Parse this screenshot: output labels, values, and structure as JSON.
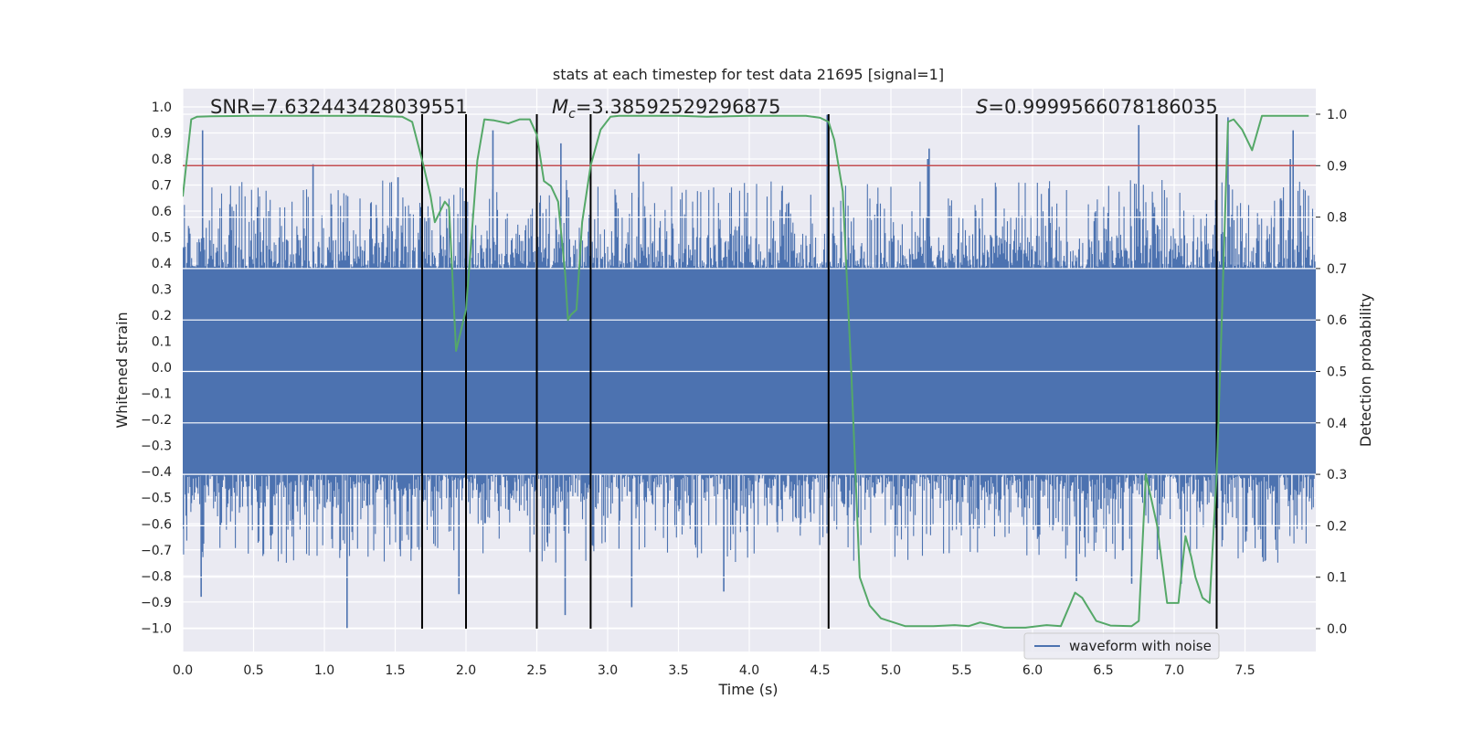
{
  "chart_data": {
    "type": "line",
    "title": "stats at each timestep for test data 21695 [signal=1]",
    "xlabel": "Time (s)",
    "ylabel_left": "Whitened strain",
    "ylabel_right": "Detection probability",
    "xlim": [
      0.0,
      8.0
    ],
    "ylim_left": [
      -1.09,
      1.07
    ],
    "ylim_right": [
      0.0,
      1.0
    ],
    "xticks": [
      0.0,
      0.5,
      1.0,
      1.5,
      2.0,
      2.5,
      3.0,
      3.5,
      4.0,
      4.5,
      5.0,
      5.5,
      6.0,
      6.5,
      7.0,
      7.5
    ],
    "xtick_labels": [
      "0.0",
      "0.5",
      "1.0",
      "1.5",
      "2.0",
      "2.5",
      "3.0",
      "3.5",
      "4.0",
      "4.5",
      "5.0",
      "5.5",
      "6.0",
      "6.5",
      "7.0",
      "7.5"
    ],
    "yticks_left": [
      1.0,
      0.9,
      0.8,
      0.7,
      0.6,
      0.5,
      0.4,
      0.3,
      0.2,
      0.1,
      0.0,
      -0.1,
      -0.2,
      -0.3,
      -0.4,
      -0.5,
      -0.6,
      -0.7,
      -0.8,
      -0.9,
      -1.0
    ],
    "ytick_labels_left": [
      "1.0",
      "0.9",
      "0.8",
      "0.7",
      "0.6",
      "0.5",
      "0.4",
      "0.3",
      "0.2",
      "0.1",
      "0.0",
      "−0.1",
      "−0.2",
      "−0.3",
      "−0.4",
      "−0.5",
      "−0.6",
      "−0.7",
      "−0.8",
      "−0.9",
      "−1.0"
    ],
    "yticks_right": [
      1.0,
      0.9,
      0.8,
      0.7,
      0.6,
      0.5,
      0.4,
      0.3,
      0.2,
      0.1,
      0.0
    ],
    "ytick_labels_right": [
      "1.0",
      "0.9",
      "0.8",
      "0.7",
      "0.6",
      "0.5",
      "0.4",
      "0.3",
      "0.2",
      "0.1",
      "0.0"
    ],
    "annotations": {
      "snr": "SNR=7.632443428039551",
      "mc_symbol": "M",
      "mc_sub": "c",
      "mc_value": "=3.38592529296875",
      "s_symbol": "S",
      "s_value": "=0.9999566078186035"
    },
    "threshold_line": {
      "axis": "right",
      "value": 0.9,
      "color": "#c44e52"
    },
    "vertical_lines": [
      1.69,
      2.0,
      2.5,
      2.88,
      4.56,
      7.3
    ],
    "noise_series": {
      "name": "waveform with noise",
      "color": "#4c72b0",
      "x_range": [
        0.0,
        8.0
      ],
      "core_band": [
        -0.41,
        0.38
      ],
      "positive_peaks": [
        {
          "x": 0.14,
          "y": 0.91
        },
        {
          "x": 0.92,
          "y": 0.78
        },
        {
          "x": 1.52,
          "y": 0.73
        },
        {
          "x": 2.19,
          "y": 0.91
        },
        {
          "x": 2.5,
          "y": 0.86
        },
        {
          "x": 2.67,
          "y": 0.86
        },
        {
          "x": 3.22,
          "y": 0.82
        },
        {
          "x": 4.55,
          "y": 0.97
        },
        {
          "x": 5.26,
          "y": 0.8
        },
        {
          "x": 5.27,
          "y": 0.84
        },
        {
          "x": 6.75,
          "y": 0.93
        },
        {
          "x": 7.38,
          "y": 0.96
        },
        {
          "x": 7.84,
          "y": 0.91
        },
        {
          "x": 7.82,
          "y": 0.8
        }
      ],
      "negative_peaks": [
        {
          "x": 0.13,
          "y": -0.88
        },
        {
          "x": 1.16,
          "y": -1.0
        },
        {
          "x": 1.95,
          "y": -0.87
        },
        {
          "x": 2.7,
          "y": -0.95
        },
        {
          "x": 3.17,
          "y": -0.92
        },
        {
          "x": 3.82,
          "y": -0.86
        },
        {
          "x": 6.31,
          "y": -0.82
        },
        {
          "x": 6.7,
          "y": -0.83
        },
        {
          "x": 7.05,
          "y": -0.83
        }
      ]
    },
    "probability_series": {
      "name": "detection probability",
      "color": "#55a868",
      "x": [
        0.0,
        0.06,
        0.1,
        0.2,
        0.5,
        1.0,
        1.3,
        1.55,
        1.62,
        1.7,
        1.75,
        1.78,
        1.85,
        1.88,
        1.93,
        2.0,
        2.08,
        2.13,
        2.2,
        2.3,
        2.38,
        2.45,
        2.5,
        2.55,
        2.6,
        2.65,
        2.7,
        2.72,
        2.74,
        2.78,
        2.82,
        2.88,
        2.95,
        3.02,
        3.08,
        3.2,
        3.5,
        3.7,
        4.0,
        4.3,
        4.4,
        4.5,
        4.56,
        4.6,
        4.66,
        4.72,
        4.78,
        4.85,
        4.93,
        5.1,
        5.3,
        5.45,
        5.55,
        5.63,
        5.7,
        5.8,
        5.95,
        6.1,
        6.2,
        6.3,
        6.35,
        6.45,
        6.55,
        6.7,
        6.75,
        6.8,
        6.88,
        6.95,
        7.03,
        7.08,
        7.12,
        7.15,
        7.2,
        7.25,
        7.3,
        7.33,
        7.38,
        7.42,
        7.48,
        7.55,
        7.62,
        7.7,
        7.95
      ],
      "y": [
        0.84,
        0.99,
        0.995,
        0.996,
        0.997,
        0.997,
        0.997,
        0.995,
        0.985,
        0.9,
        0.84,
        0.79,
        0.83,
        0.82,
        0.54,
        0.62,
        0.91,
        0.99,
        0.988,
        0.982,
        0.99,
        0.99,
        0.96,
        0.87,
        0.86,
        0.83,
        0.69,
        0.6,
        0.61,
        0.62,
        0.79,
        0.9,
        0.97,
        0.995,
        0.997,
        0.997,
        0.997,
        0.995,
        0.997,
        0.997,
        0.997,
        0.993,
        0.985,
        0.95,
        0.85,
        0.5,
        0.1,
        0.045,
        0.02,
        0.005,
        0.005,
        0.007,
        0.005,
        0.012,
        0.008,
        0.002,
        0.002,
        0.007,
        0.005,
        0.07,
        0.06,
        0.015,
        0.006,
        0.005,
        0.015,
        0.3,
        0.2,
        0.05,
        0.05,
        0.18,
        0.14,
        0.1,
        0.06,
        0.05,
        0.3,
        0.55,
        0.985,
        0.99,
        0.97,
        0.93,
        0.997,
        0.997,
        0.997
      ]
    },
    "legend": {
      "labels": [
        "waveform with noise"
      ],
      "placement": "bottom-right"
    }
  }
}
